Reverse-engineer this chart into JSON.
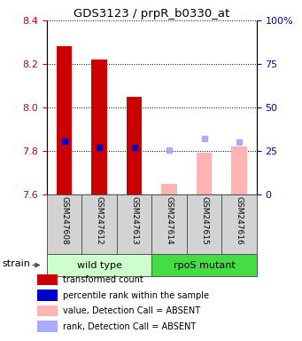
{
  "title": "GDS3123 / prpR_b0330_at",
  "samples": [
    "GSM247608",
    "GSM247612",
    "GSM247613",
    "GSM247614",
    "GSM247615",
    "GSM247616"
  ],
  "ylim_left": [
    7.6,
    8.4
  ],
  "ylim_right": [
    0,
    100
  ],
  "yticks_left": [
    7.6,
    7.8,
    8.0,
    8.2,
    8.4
  ],
  "yticks_right": [
    0,
    25,
    50,
    75,
    100
  ],
  "bar_values": [
    8.28,
    8.22,
    8.05,
    7.65,
    7.79,
    7.82
  ],
  "bar_colors": [
    "#cc0000",
    "#cc0000",
    "#cc0000",
    "#ffb3b3",
    "#ffb3b3",
    "#ffb3b3"
  ],
  "rank_values": [
    7.845,
    7.815,
    7.815,
    7.805,
    7.855,
    7.84
  ],
  "rank_colors": [
    "#0000cc",
    "#0000cc",
    "#0000cc",
    "#aaaaff",
    "#aaaaff",
    "#aaaaff"
  ],
  "base": 7.6,
  "group0_color": "#ccffcc",
  "group1_color": "#44dd44",
  "left_tick_color": "#cc0000",
  "right_tick_color": "#0000cc",
  "legend_items": [
    [
      "#cc0000",
      "transformed count"
    ],
    [
      "#0000cc",
      "percentile rank within the sample"
    ],
    [
      "#ffb3b3",
      "value, Detection Call = ABSENT"
    ],
    [
      "#aaaaff",
      "rank, Detection Call = ABSENT"
    ]
  ]
}
